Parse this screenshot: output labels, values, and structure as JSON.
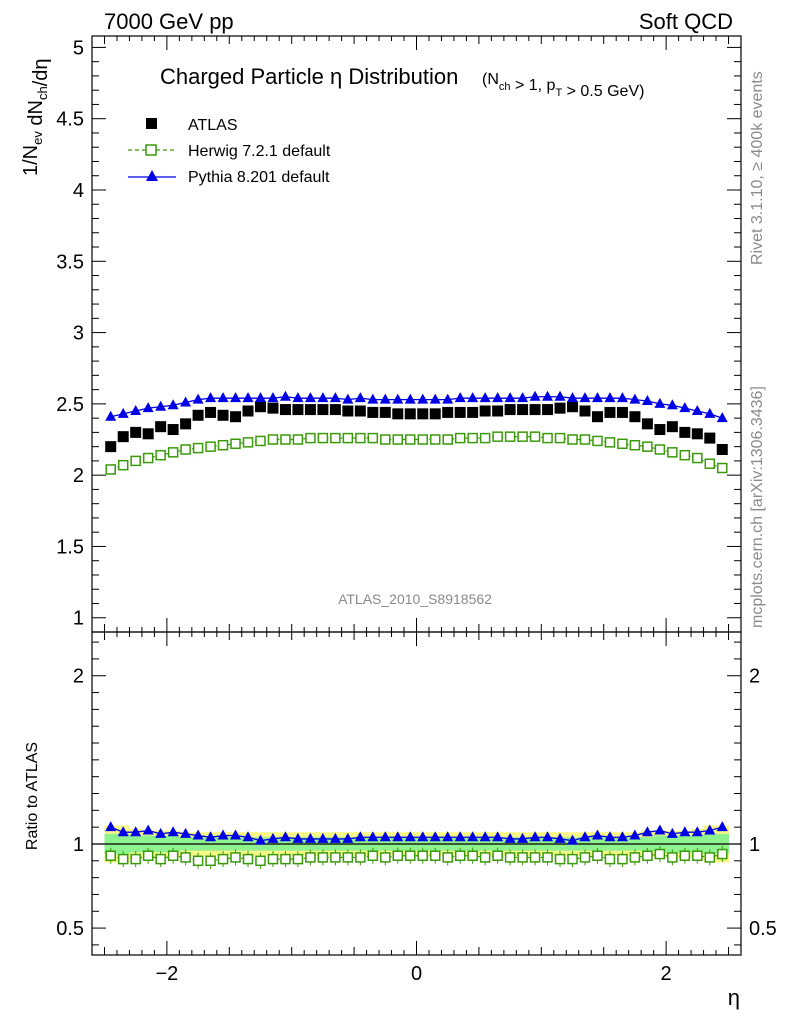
{
  "header": {
    "left": "7000 GeV pp",
    "right": "Soft QCD"
  },
  "side": {
    "rivet": "Rivet 3.1.10, ≥ 400k events",
    "mcplots": "mcplots.cern.ch [arXiv:1306.3436]"
  },
  "chart_data": [
    {
      "type": "scatter",
      "title": "Charged Particle η Distribution",
      "title_sub": "(N_ch > 1, p_T > 0.5 GeV)",
      "watermark": "ATLAS_2010_S8918562",
      "ylabel": "1/N_ev dN_ch/dη",
      "xlim": [
        -2.6,
        2.6
      ],
      "ylim": [
        0.9,
        5.08
      ],
      "yticks": [
        1,
        1.5,
        2,
        2.5,
        3,
        3.5,
        4,
        4.5,
        5
      ],
      "ytick_labels": [
        "1",
        "1.5",
        "2",
        "2.5",
        "3",
        "3.5",
        "4",
        "4.5",
        "5"
      ],
      "legend_position": "top-left",
      "x": [
        -2.45,
        -2.35,
        -2.25,
        -2.15,
        -2.05,
        -1.95,
        -1.85,
        -1.75,
        -1.65,
        -1.55,
        -1.45,
        -1.35,
        -1.25,
        -1.15,
        -1.05,
        -0.95,
        -0.85,
        -0.75,
        -0.65,
        -0.55,
        -0.45,
        -0.35,
        -0.25,
        -0.15,
        -0.05,
        0.05,
        0.15,
        0.25,
        0.35,
        0.45,
        0.55,
        0.65,
        0.75,
        0.85,
        0.95,
        1.05,
        1.15,
        1.25,
        1.35,
        1.45,
        1.55,
        1.65,
        1.75,
        1.85,
        1.95,
        2.05,
        2.15,
        2.25,
        2.35,
        2.45
      ],
      "series": [
        {
          "name": "ATLAS",
          "color": "#000000",
          "marker": "filled-square",
          "values": [
            2.2,
            2.27,
            2.3,
            2.29,
            2.34,
            2.32,
            2.36,
            2.42,
            2.44,
            2.42,
            2.41,
            2.45,
            2.48,
            2.47,
            2.46,
            2.46,
            2.46,
            2.46,
            2.46,
            2.45,
            2.45,
            2.44,
            2.44,
            2.43,
            2.43,
            2.43,
            2.43,
            2.44,
            2.44,
            2.44,
            2.45,
            2.45,
            2.46,
            2.46,
            2.46,
            2.46,
            2.47,
            2.48,
            2.45,
            2.41,
            2.44,
            2.44,
            2.41,
            2.36,
            2.32,
            2.34,
            2.3,
            2.29,
            2.26,
            2.18
          ]
        },
        {
          "name": "Herwig 7.2.1 default",
          "color": "#3a9a0a",
          "marker": "open-square",
          "line": "dashed",
          "values": [
            2.04,
            2.07,
            2.1,
            2.12,
            2.14,
            2.16,
            2.18,
            2.19,
            2.2,
            2.21,
            2.22,
            2.23,
            2.24,
            2.25,
            2.25,
            2.25,
            2.26,
            2.26,
            2.26,
            2.26,
            2.26,
            2.26,
            2.25,
            2.25,
            2.25,
            2.25,
            2.25,
            2.25,
            2.26,
            2.26,
            2.26,
            2.27,
            2.27,
            2.27,
            2.27,
            2.26,
            2.26,
            2.25,
            2.25,
            2.24,
            2.23,
            2.22,
            2.21,
            2.2,
            2.18,
            2.16,
            2.14,
            2.12,
            2.08,
            2.05
          ]
        },
        {
          "name": "Pythia 8.201 default",
          "color": "#0000e6",
          "marker": "filled-triangle",
          "line": "solid",
          "values": [
            2.41,
            2.43,
            2.45,
            2.47,
            2.48,
            2.49,
            2.51,
            2.53,
            2.54,
            2.54,
            2.54,
            2.54,
            2.54,
            2.54,
            2.55,
            2.54,
            2.54,
            2.54,
            2.54,
            2.53,
            2.54,
            2.53,
            2.53,
            2.53,
            2.53,
            2.53,
            2.53,
            2.53,
            2.54,
            2.54,
            2.54,
            2.54,
            2.54,
            2.54,
            2.55,
            2.55,
            2.55,
            2.54,
            2.54,
            2.54,
            2.54,
            2.54,
            2.53,
            2.52,
            2.5,
            2.49,
            2.47,
            2.45,
            2.43,
            2.4
          ]
        }
      ]
    },
    {
      "type": "scatter",
      "ylabel": "Ratio to ATLAS",
      "xlabel": "η",
      "xlim": [
        -2.6,
        2.6
      ],
      "ylim": [
        0.34,
        2.26
      ],
      "xticks": [
        -2,
        0,
        2
      ],
      "xtick_labels": [
        "−2",
        "0",
        "2"
      ],
      "yticks": [
        0.5,
        1,
        2
      ],
      "ytick_labels": [
        "0.5",
        "1",
        "2"
      ],
      "band_green_halfwidth": [
        0.06,
        0.06,
        0.05,
        0.05,
        0.05,
        0.05,
        0.04,
        0.04,
        0.04,
        0.04,
        0.04,
        0.04,
        0.04,
        0.04,
        0.04,
        0.04,
        0.04,
        0.04,
        0.04,
        0.04,
        0.04,
        0.04,
        0.04,
        0.04,
        0.04,
        0.04,
        0.04,
        0.04,
        0.04,
        0.04,
        0.04,
        0.04,
        0.04,
        0.04,
        0.04,
        0.04,
        0.04,
        0.04,
        0.04,
        0.04,
        0.04,
        0.04,
        0.04,
        0.04,
        0.05,
        0.05,
        0.05,
        0.05,
        0.06,
        0.06
      ],
      "band_yellow_halfwidth": [
        0.11,
        0.11,
        0.09,
        0.08,
        0.08,
        0.08,
        0.07,
        0.07,
        0.07,
        0.07,
        0.07,
        0.07,
        0.07,
        0.07,
        0.07,
        0.07,
        0.07,
        0.07,
        0.07,
        0.07,
        0.07,
        0.07,
        0.07,
        0.07,
        0.07,
        0.07,
        0.07,
        0.07,
        0.07,
        0.07,
        0.07,
        0.07,
        0.07,
        0.07,
        0.07,
        0.07,
        0.07,
        0.07,
        0.07,
        0.07,
        0.07,
        0.07,
        0.07,
        0.08,
        0.08,
        0.08,
        0.08,
        0.09,
        0.11,
        0.11
      ],
      "series": [
        {
          "name": "Herwig 7.2.1 default",
          "color": "#3a9a0a",
          "values": [
            0.93,
            0.91,
            0.91,
            0.93,
            0.91,
            0.93,
            0.92,
            0.9,
            0.9,
            0.91,
            0.92,
            0.91,
            0.9,
            0.91,
            0.91,
            0.91,
            0.92,
            0.92,
            0.92,
            0.92,
            0.92,
            0.93,
            0.92,
            0.93,
            0.93,
            0.93,
            0.93,
            0.92,
            0.93,
            0.93,
            0.92,
            0.93,
            0.92,
            0.92,
            0.92,
            0.92,
            0.91,
            0.91,
            0.92,
            0.93,
            0.91,
            0.91,
            0.92,
            0.93,
            0.94,
            0.92,
            0.93,
            0.93,
            0.92,
            0.94
          ]
        },
        {
          "name": "Pythia 8.201 default",
          "color": "#0000e6",
          "values": [
            1.1,
            1.07,
            1.07,
            1.08,
            1.06,
            1.07,
            1.06,
            1.05,
            1.04,
            1.05,
            1.05,
            1.04,
            1.02,
            1.03,
            1.04,
            1.03,
            1.03,
            1.03,
            1.03,
            1.03,
            1.04,
            1.04,
            1.04,
            1.04,
            1.04,
            1.04,
            1.04,
            1.04,
            1.04,
            1.04,
            1.04,
            1.04,
            1.03,
            1.03,
            1.04,
            1.04,
            1.03,
            1.02,
            1.04,
            1.05,
            1.04,
            1.04,
            1.05,
            1.07,
            1.08,
            1.06,
            1.07,
            1.07,
            1.08,
            1.1
          ]
        }
      ]
    }
  ]
}
